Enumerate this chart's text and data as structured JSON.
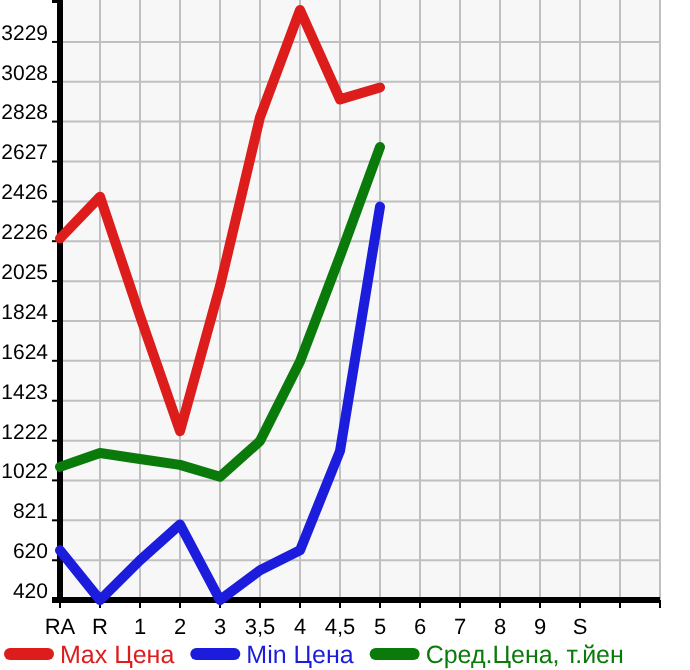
{
  "chart_data": {
    "type": "line",
    "categories": [
      "RA",
      "R",
      "1",
      "2",
      "3",
      "3,5",
      "4",
      "4,5",
      "5",
      "6",
      "7",
      "8",
      "9",
      "S",
      null
    ],
    "series": [
      {
        "name": "Max Цена",
        "color": "#dd1c1c",
        "values": [
          2240,
          2450,
          1850,
          1270,
          2000,
          2850,
          3390,
          2940,
          3000,
          null,
          null,
          null,
          null,
          null,
          null
        ]
      },
      {
        "name": "Min Цена",
        "color": "#1c1cdd",
        "values": [
          670,
          420,
          620,
          800,
          420,
          570,
          670,
          1170,
          2400,
          null,
          null,
          null,
          null,
          null,
          null
        ]
      },
      {
        "name": "Сред.Цена, т.йен",
        "color": "#0a7a0a",
        "values": [
          1090,
          1160,
          1130,
          1100,
          1040,
          1220,
          1620,
          2150,
          2700,
          null,
          null,
          null,
          null,
          null,
          null
        ]
      }
    ],
    "ylim": [
      420,
      3440
    ],
    "yticks": [
      420,
      620,
      821,
      1022,
      1222,
      1423,
      1624,
      1824,
      2025,
      2226,
      2426,
      2627,
      2828,
      3028,
      3229
    ],
    "grid": true,
    "legend": "bottom",
    "marker": "none",
    "line_style": "solid"
  }
}
